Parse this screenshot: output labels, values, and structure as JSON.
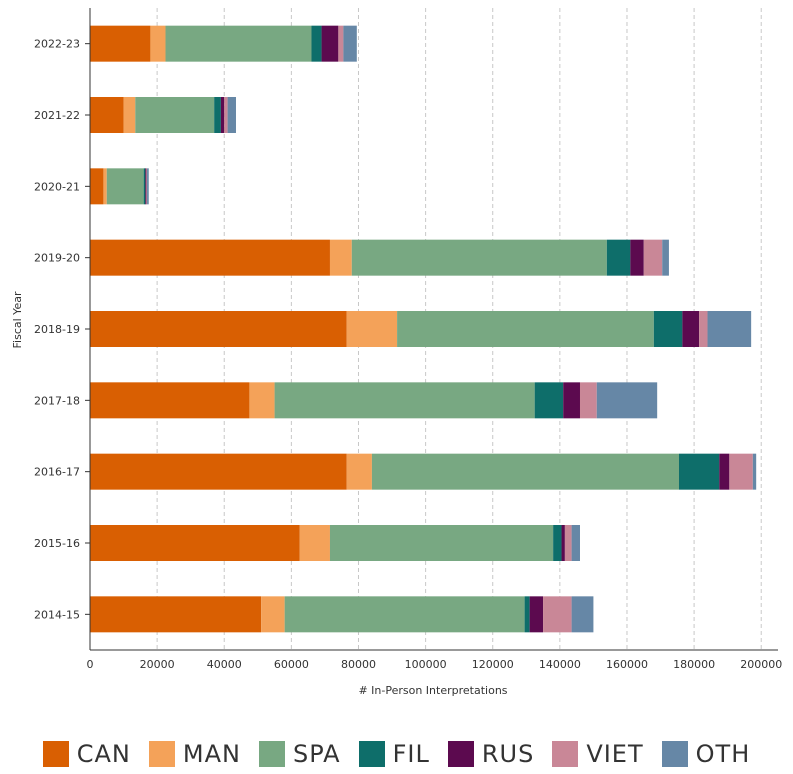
{
  "chart_data": {
    "type": "bar",
    "orientation": "horizontal",
    "stacked": true,
    "xlabel": "# In-Person Interpretations",
    "ylabel": "Fiscal Year",
    "xlim": [
      0,
      205000
    ],
    "xticks": [
      0,
      20000,
      40000,
      60000,
      80000,
      100000,
      120000,
      140000,
      160000,
      180000,
      200000
    ],
    "grid": "vertical dashed",
    "legend_position": "bottom",
    "categories": [
      "2022-23",
      "2021-22",
      "2020-21",
      "2019-20",
      "2018-19",
      "2017-18",
      "2016-17",
      "2015-16",
      "2014-15"
    ],
    "series": [
      {
        "name": "CAN",
        "color": "#d95f02",
        "values": [
          18000,
          10000,
          4000,
          71500,
          76500,
          47500,
          76500,
          62500,
          51000
        ]
      },
      {
        "name": "MAN",
        "color": "#f4a259",
        "values": [
          4500,
          3500,
          1000,
          6500,
          15000,
          7500,
          7500,
          9000,
          7000
        ]
      },
      {
        "name": "SPA",
        "color": "#78a882",
        "values": [
          43500,
          23500,
          11000,
          76000,
          76500,
          77500,
          91500,
          66500,
          71500
        ]
      },
      {
        "name": "FIL",
        "color": "#0e6e6a",
        "values": [
          3000,
          2000,
          500,
          7000,
          8500,
          8500,
          12000,
          2500,
          1500
        ]
      },
      {
        "name": "RUS",
        "color": "#5c0a4f",
        "values": [
          5000,
          1000,
          300,
          4000,
          5000,
          5000,
          3000,
          1000,
          4000
        ]
      },
      {
        "name": "VIET",
        "color": "#c98797",
        "values": [
          1500,
          1000,
          200,
          5500,
          2500,
          5000,
          7000,
          2000,
          8500
        ]
      },
      {
        "name": "OTH",
        "color": "#6687a6",
        "values": [
          4000,
          2500,
          500,
          2000,
          13000,
          18000,
          1000,
          2500,
          6500
        ]
      }
    ]
  }
}
